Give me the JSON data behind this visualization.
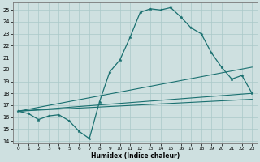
{
  "xlabel": "Humidex (Indice chaleur)",
  "xlim": [
    -0.5,
    23.5
  ],
  "ylim": [
    13.8,
    25.6
  ],
  "yticks": [
    14,
    15,
    16,
    17,
    18,
    19,
    20,
    21,
    22,
    23,
    24,
    25
  ],
  "xticks": [
    0,
    1,
    2,
    3,
    4,
    5,
    6,
    7,
    8,
    9,
    10,
    11,
    12,
    13,
    14,
    15,
    16,
    17,
    18,
    19,
    20,
    21,
    22,
    23
  ],
  "bg_color": "#cee0e0",
  "grid_color": "#aac8c8",
  "line_color": "#1a7070",
  "series_main": {
    "x": [
      0,
      1,
      2,
      3,
      4,
      5,
      6,
      7,
      8,
      9,
      10,
      11,
      12,
      13,
      14,
      15,
      16,
      17,
      18,
      19,
      20,
      21,
      22,
      23
    ],
    "y": [
      16.5,
      16.3,
      15.8,
      16.1,
      16.2,
      15.7,
      14.8,
      14.2,
      17.3,
      19.8,
      20.8,
      22.7,
      24.8,
      25.1,
      25.0,
      25.2,
      24.4,
      23.5,
      23.0,
      21.4,
      20.2,
      19.2,
      19.5,
      18.0
    ]
  },
  "series_lines": [
    {
      "x": [
        0,
        23
      ],
      "y": [
        16.5,
        20.2
      ]
    },
    {
      "x": [
        0,
        23
      ],
      "y": [
        16.5,
        18.0
      ]
    },
    {
      "x": [
        0,
        23
      ],
      "y": [
        16.5,
        17.5
      ]
    }
  ]
}
